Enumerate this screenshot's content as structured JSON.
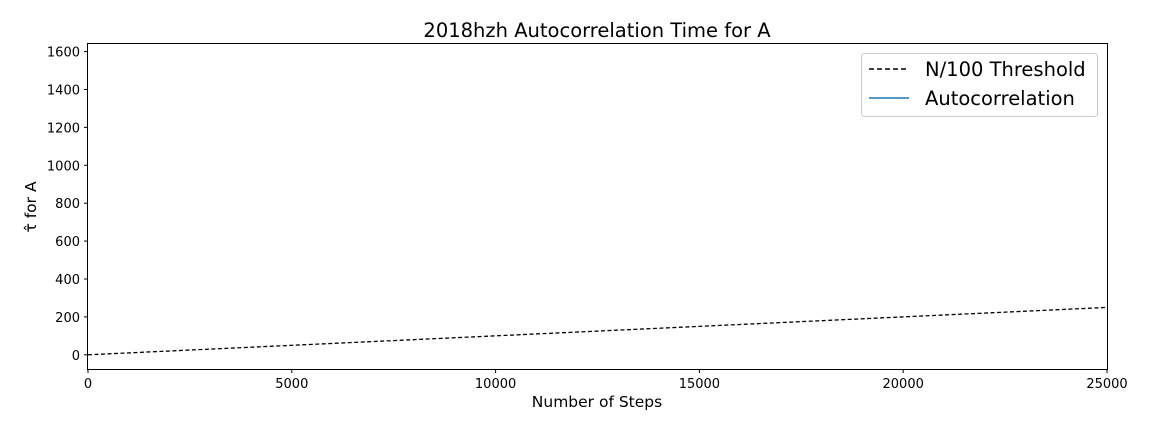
{
  "chart_data": {
    "type": "line",
    "title": "2018hzh Autocorrelation Time for A",
    "xlabel": "Number of Steps",
    "ylabel": "τ̂ for A",
    "xlim": [
      0,
      25000
    ],
    "ylim": [
      -75,
      1640
    ],
    "xticks": [
      0,
      5000,
      10000,
      15000,
      20000,
      25000
    ],
    "yticks": [
      0,
      200,
      400,
      600,
      800,
      1000,
      1200,
      1400,
      1600
    ],
    "grid": false,
    "legend_position": "upper right",
    "series": [
      {
        "name": "N/100 Threshold",
        "style": "dashed",
        "color": "#000000",
        "x": [
          0,
          25000
        ],
        "y": [
          0,
          250
        ]
      },
      {
        "name": "Autocorrelation",
        "style": "solid",
        "color": "#1f77b4",
        "x": [],
        "y": []
      }
    ]
  }
}
